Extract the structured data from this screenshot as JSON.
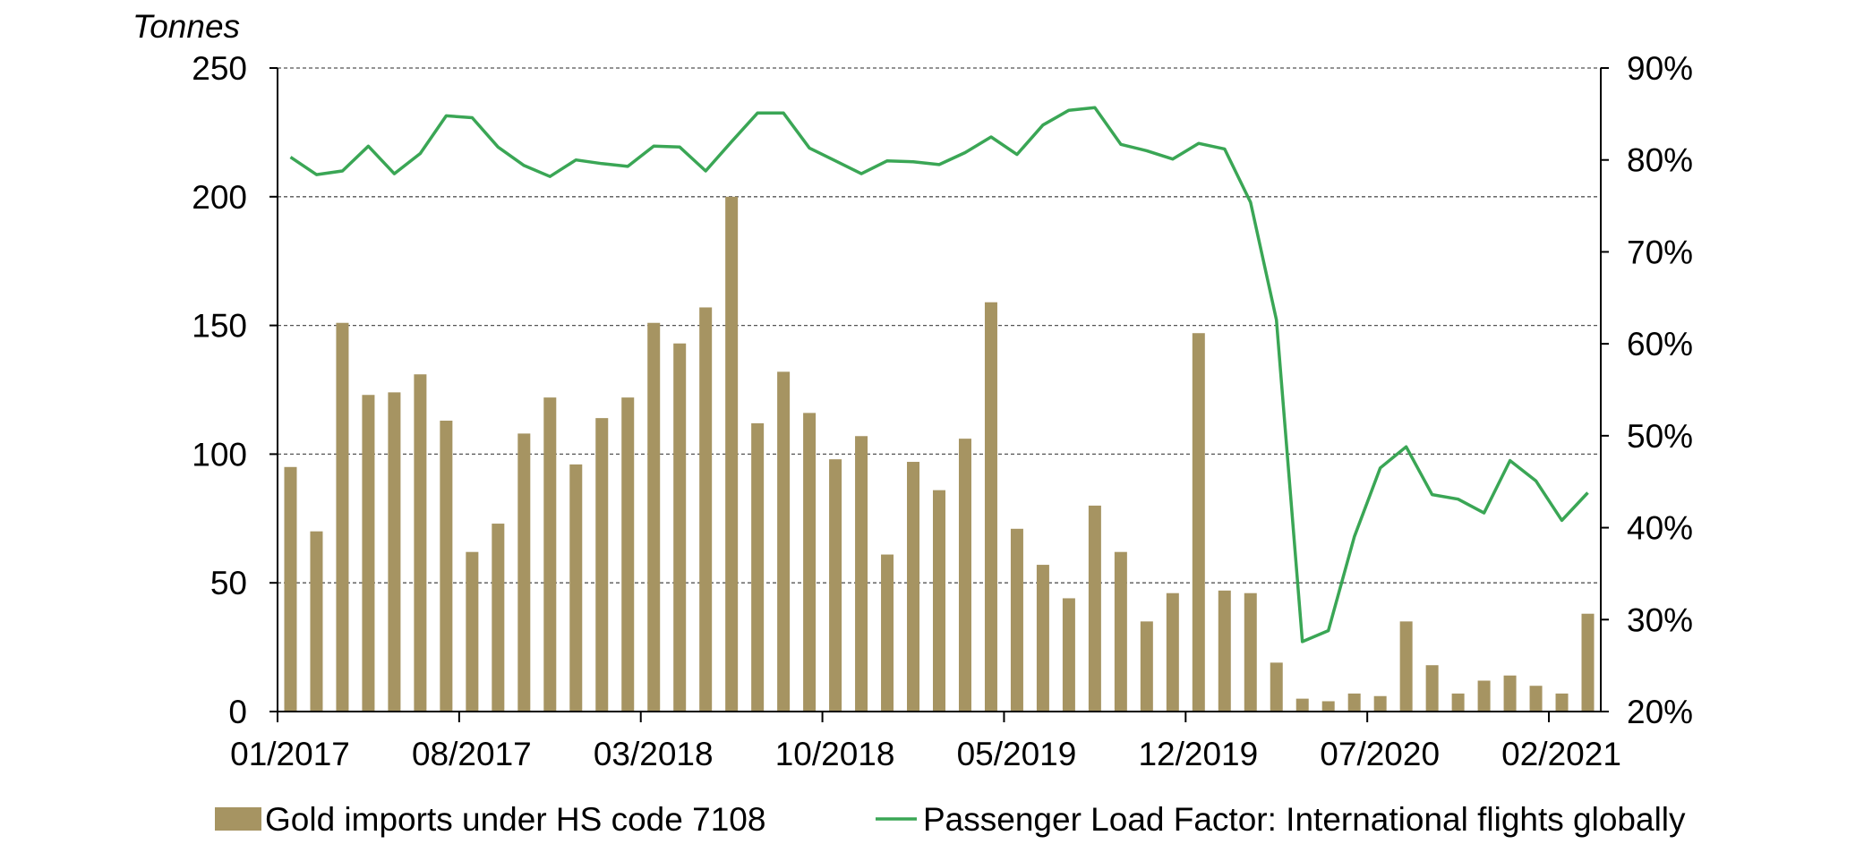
{
  "chart_data": {
    "type": "bar-line combo",
    "title": "",
    "ylabel": "Tonnes",
    "ylim": [
      0,
      250
    ],
    "y_ticks": [
      "0",
      "50",
      "100",
      "150",
      "200",
      "250"
    ],
    "y2lim": [
      20,
      90
    ],
    "y2_ticks": [
      "20%",
      "30%",
      "40%",
      "50%",
      "60%",
      "70%",
      "80%",
      "90%"
    ],
    "x_tick_labels": [
      "01/2017",
      "08/2017",
      "03/2018",
      "10/2018",
      "05/2019",
      "12/2019",
      "07/2020",
      "02/2021"
    ],
    "x_tick_indices": [
      0,
      7,
      14,
      21,
      28,
      35,
      42,
      49
    ],
    "grid": "horizontal dashed",
    "legend_position": "bottom",
    "months": [
      "01/2017",
      "02/2017",
      "03/2017",
      "04/2017",
      "05/2017",
      "06/2017",
      "07/2017",
      "08/2017",
      "09/2017",
      "10/2017",
      "11/2017",
      "12/2017",
      "01/2018",
      "02/2018",
      "03/2018",
      "04/2018",
      "05/2018",
      "06/2018",
      "07/2018",
      "08/2018",
      "09/2018",
      "10/2018",
      "11/2018",
      "12/2018",
      "01/2019",
      "02/2019",
      "03/2019",
      "04/2019",
      "05/2019",
      "06/2019",
      "07/2019",
      "08/2019",
      "09/2019",
      "10/2019",
      "11/2019",
      "12/2019",
      "01/2020",
      "02/2020",
      "03/2020",
      "04/2020",
      "05/2020",
      "06/2020",
      "07/2020",
      "08/2020",
      "09/2020",
      "10/2020",
      "11/2020",
      "12/2020",
      "01/2021",
      "02/2021",
      "03/2021"
    ],
    "series": [
      {
        "name": "Gold imports under HS code 7108",
        "type": "bar",
        "axis": "left",
        "color": "#a69462",
        "values": [
          95,
          70,
          151,
          123,
          124,
          131,
          113,
          62,
          73,
          108,
          122,
          96,
          114,
          122,
          151,
          143,
          157,
          200,
          112,
          132,
          116,
          98,
          107,
          61,
          97,
          86,
          106,
          159,
          71,
          57,
          44,
          80,
          62,
          35,
          46,
          147,
          47,
          46,
          19,
          5,
          4,
          7,
          6,
          35,
          18,
          7,
          12,
          14,
          10,
          7,
          38
        ]
      },
      {
        "name": "Passenger Load Factor: International flights globally",
        "type": "line",
        "axis": "right",
        "color": "#3aa655",
        "values": [
          80.3,
          78.4,
          78.8,
          81.5,
          78.5,
          80.7,
          84.8,
          84.6,
          81.4,
          79.4,
          78.2,
          80.0,
          79.6,
          79.3,
          81.5,
          81.4,
          78.8,
          82.0,
          85.1,
          85.1,
          81.3,
          79.9,
          78.5,
          79.9,
          79.8,
          79.5,
          80.8,
          82.5,
          80.6,
          83.8,
          85.4,
          85.7,
          81.7,
          81.0,
          80.1,
          81.8,
          81.2,
          75.4,
          62.6,
          27.6,
          28.8,
          39.0,
          46.5,
          48.8,
          43.6,
          43.1,
          41.6,
          47.3,
          45.1,
          40.8,
          43.8
        ]
      }
    ]
  },
  "legend": {
    "bar_label": "Gold imports under HS code 7108",
    "line_label": "Passenger Load Factor: International flights globally"
  },
  "colors": {
    "bar": "#a69462",
    "line": "#3aa655",
    "grid": "#555555",
    "axis": "#000000"
  }
}
